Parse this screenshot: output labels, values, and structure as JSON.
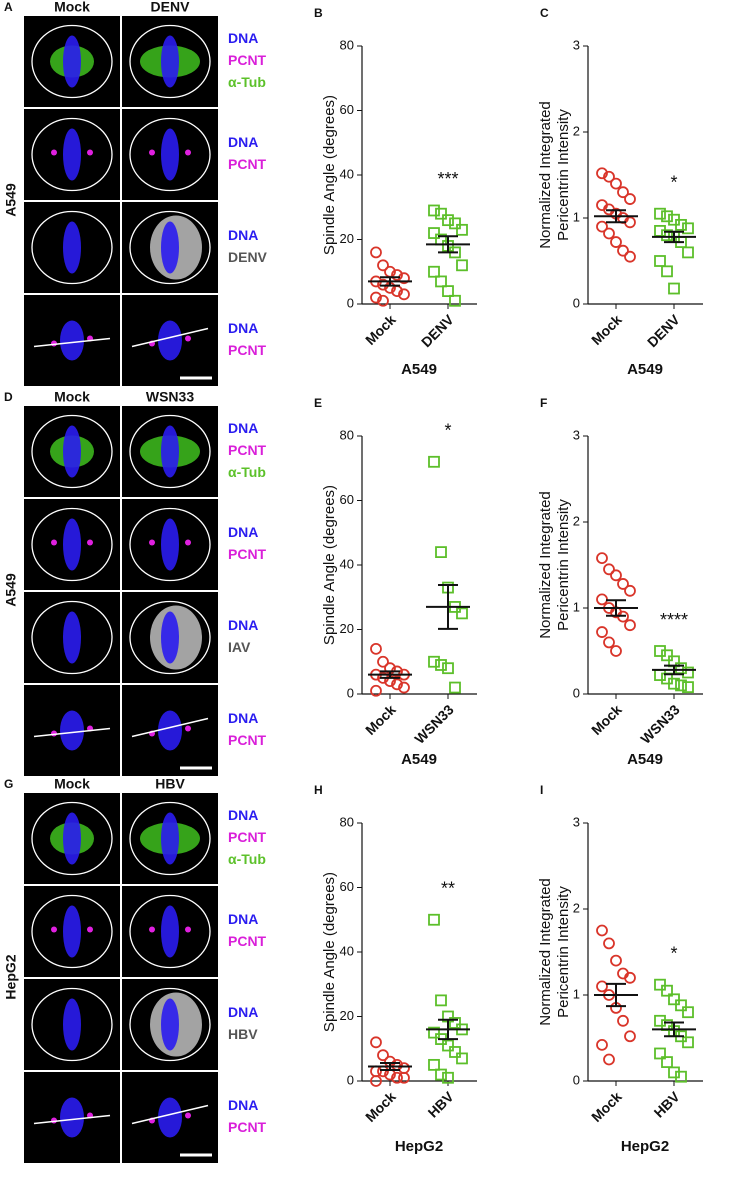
{
  "microscopy": [
    {
      "panel": "A",
      "cell_line": "A549",
      "columns": [
        "Mock",
        "DENV"
      ],
      "rows": [
        {
          "channels": [
            {
              "text": "DNA",
              "color": "#2a1cf0"
            },
            {
              "text": "PCNT",
              "color": "#d91fd9"
            },
            {
              "text": "α-Tub",
              "color": "#5cc12a"
            }
          ]
        },
        {
          "channels": [
            {
              "text": "DNA",
              "color": "#2a1cf0"
            },
            {
              "text": "PCNT",
              "color": "#d91fd9"
            }
          ]
        },
        {
          "channels": [
            {
              "text": "DNA",
              "color": "#2a1cf0"
            },
            {
              "text": "DENV",
              "color": "#555555"
            }
          ]
        },
        {
          "channels": [
            {
              "text": "DNA",
              "color": "#2a1cf0"
            },
            {
              "text": "PCNT",
              "color": "#d91fd9"
            }
          ]
        }
      ]
    },
    {
      "panel": "D",
      "cell_line": "A549",
      "columns": [
        "Mock",
        "WSN33"
      ],
      "rows": [
        {
          "channels": [
            {
              "text": "DNA",
              "color": "#2a1cf0"
            },
            {
              "text": "PCNT",
              "color": "#d91fd9"
            },
            {
              "text": "α-Tub",
              "color": "#5cc12a"
            }
          ]
        },
        {
          "channels": [
            {
              "text": "DNA",
              "color": "#2a1cf0"
            },
            {
              "text": "PCNT",
              "color": "#d91fd9"
            }
          ]
        },
        {
          "channels": [
            {
              "text": "DNA",
              "color": "#2a1cf0"
            },
            {
              "text": "IAV",
              "color": "#555555"
            }
          ]
        },
        {
          "channels": [
            {
              "text": "DNA",
              "color": "#2a1cf0"
            },
            {
              "text": "PCNT",
              "color": "#d91fd9"
            }
          ]
        }
      ]
    },
    {
      "panel": "G",
      "cell_line": "HepG2",
      "columns": [
        "Mock",
        "HBV"
      ],
      "rows": [
        {
          "channels": [
            {
              "text": "DNA",
              "color": "#2a1cf0"
            },
            {
              "text": "PCNT",
              "color": "#d91fd9"
            },
            {
              "text": "α-Tub",
              "color": "#5cc12a"
            }
          ]
        },
        {
          "channels": [
            {
              "text": "DNA",
              "color": "#2a1cf0"
            },
            {
              "text": "PCNT",
              "color": "#d91fd9"
            }
          ]
        },
        {
          "channels": [
            {
              "text": "DNA",
              "color": "#2a1cf0"
            },
            {
              "text": "HBV",
              "color": "#555555"
            }
          ]
        },
        {
          "channels": [
            {
              "text": "DNA",
              "color": "#2a1cf0"
            },
            {
              "text": "PCNT",
              "color": "#d91fd9"
            }
          ]
        }
      ]
    }
  ],
  "chart_data": [
    {
      "type": "scatter",
      "panel": "B",
      "ylabel": [
        "Spindle Angle (degrees)"
      ],
      "xlabel": "A549",
      "categories": [
        "Mock",
        "DENV"
      ],
      "ylim": [
        0,
        80
      ],
      "yticks": [
        0,
        20,
        40,
        60,
        80
      ],
      "groups": [
        {
          "color": "#d9352a",
          "marker": "circle",
          "values": [
            16,
            12,
            10,
            9,
            8,
            7,
            6,
            5,
            4,
            3,
            2,
            1
          ],
          "mean": 7,
          "sem": 1.3
        },
        {
          "color": "#5cbf2a",
          "marker": "square",
          "values": [
            29,
            28,
            26,
            25,
            23,
            22,
            20,
            18,
            16,
            12,
            10,
            7,
            4,
            1
          ],
          "mean": 18.5,
          "sem": 2.5,
          "annotation": "***"
        }
      ]
    },
    {
      "type": "scatter",
      "panel": "C",
      "ylabel": [
        "Normalized Integrated",
        "Pericentrin Intensity"
      ],
      "xlabel": "A549",
      "categories": [
        "Mock",
        "DENV"
      ],
      "ylim": [
        0,
        3
      ],
      "yticks": [
        0,
        1,
        2,
        3
      ],
      "groups": [
        {
          "color": "#d9352a",
          "marker": "circle",
          "values": [
            1.52,
            1.48,
            1.4,
            1.3,
            1.22,
            1.15,
            1.1,
            1.05,
            1.0,
            0.95,
            0.9,
            0.82,
            0.72,
            0.62,
            0.55
          ],
          "mean": 1.02,
          "sem": 0.07
        },
        {
          "color": "#5cbf2a",
          "marker": "square",
          "values": [
            1.05,
            1.02,
            0.98,
            0.92,
            0.88,
            0.85,
            0.8,
            0.78,
            0.72,
            0.6,
            0.5,
            0.38,
            0.18
          ],
          "mean": 0.78,
          "sem": 0.06,
          "annotation": "*"
        }
      ]
    },
    {
      "type": "scatter",
      "panel": "E",
      "ylabel": [
        "Spindle Angle (degrees)"
      ],
      "xlabel": "A549",
      "categories": [
        "Mock",
        "WSN33"
      ],
      "ylim": [
        0,
        80
      ],
      "yticks": [
        0,
        20,
        40,
        60,
        80
      ],
      "groups": [
        {
          "color": "#d9352a",
          "marker": "circle",
          "values": [
            14,
            10,
            8,
            7,
            6,
            6,
            5,
            4,
            3,
            2,
            1
          ],
          "mean": 6,
          "sem": 1
        },
        {
          "color": "#5cbf2a",
          "marker": "square",
          "values": [
            72,
            44,
            33,
            27,
            25,
            10,
            9,
            8,
            2
          ],
          "mean": 27,
          "sem": 6.8,
          "annotation": "*"
        }
      ]
    },
    {
      "type": "scatter",
      "panel": "F",
      "ylabel": [
        "Normalized Integrated",
        "Pericentrin Intensity"
      ],
      "xlabel": "A549",
      "categories": [
        "Mock",
        "WSN33"
      ],
      "ylim": [
        0,
        3
      ],
      "yticks": [
        0,
        1,
        2,
        3
      ],
      "groups": [
        {
          "color": "#d9352a",
          "marker": "circle",
          "values": [
            1.58,
            1.45,
            1.38,
            1.28,
            1.2,
            1.1,
            1.0,
            0.95,
            0.9,
            0.8,
            0.72,
            0.6,
            0.5
          ],
          "mean": 1.0,
          "sem": 0.09
        },
        {
          "color": "#5cbf2a",
          "marker": "square",
          "values": [
            0.5,
            0.45,
            0.38,
            0.3,
            0.25,
            0.22,
            0.18,
            0.12,
            0.1,
            0.08
          ],
          "mean": 0.28,
          "sem": 0.05,
          "annotation": "****"
        }
      ]
    },
    {
      "type": "scatter",
      "panel": "H",
      "ylabel": [
        "Spindle Angle (degrees)"
      ],
      "xlabel": "HepG2",
      "categories": [
        "Mock",
        "HBV"
      ],
      "ylim": [
        0,
        80
      ],
      "yticks": [
        0,
        20,
        40,
        60,
        80
      ],
      "groups": [
        {
          "color": "#d9352a",
          "marker": "circle",
          "values": [
            12,
            8,
            6,
            5,
            4,
            3,
            3,
            2,
            1,
            1,
            0
          ],
          "mean": 4.5,
          "sem": 1.1
        },
        {
          "color": "#5cbf2a",
          "marker": "square",
          "values": [
            50,
            25,
            20,
            18,
            16,
            15,
            13,
            11,
            9,
            7,
            5,
            2,
            1
          ],
          "mean": 16,
          "sem": 3,
          "annotation": "**"
        }
      ]
    },
    {
      "type": "scatter",
      "panel": "I",
      "ylabel": [
        "Normalized Integrated",
        "Pericentrin Intensity"
      ],
      "xlabel": "HepG2",
      "categories": [
        "Mock",
        "HBV"
      ],
      "ylim": [
        0,
        3
      ],
      "yticks": [
        0,
        1,
        2,
        3
      ],
      "groups": [
        {
          "color": "#d9352a",
          "marker": "circle",
          "values": [
            1.75,
            1.6,
            1.4,
            1.25,
            1.2,
            1.1,
            1.0,
            0.85,
            0.7,
            0.52,
            0.42,
            0.25
          ],
          "mean": 1.0,
          "sem": 0.13
        },
        {
          "color": "#5cbf2a",
          "marker": "square",
          "values": [
            1.12,
            1.05,
            0.95,
            0.88,
            0.8,
            0.7,
            0.65,
            0.58,
            0.52,
            0.45,
            0.32,
            0.22,
            0.1,
            0.05
          ],
          "mean": 0.6,
          "sem": 0.08,
          "annotation": "*"
        }
      ]
    }
  ]
}
